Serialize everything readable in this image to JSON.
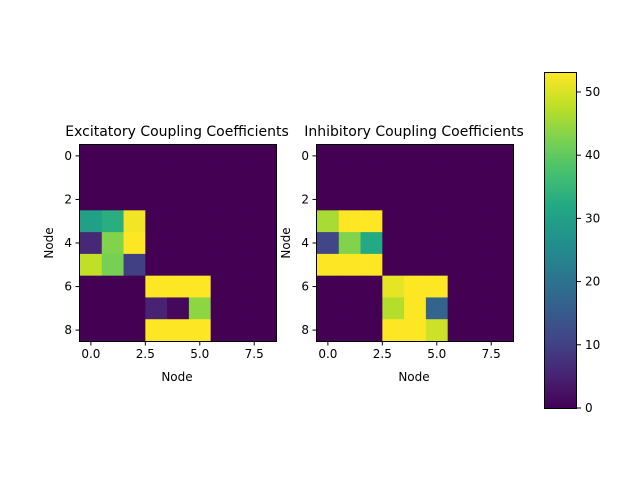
{
  "chart_data": [
    {
      "type": "heatmap",
      "title": "Excitatory Coupling Coefficients",
      "xlabel": "Node",
      "ylabel": "Node",
      "xticks": [
        "0.0",
        "2.5",
        "5.0",
        "7.5"
      ],
      "yticks": [
        "0",
        "2",
        "4",
        "6",
        "8"
      ],
      "values": [
        [
          0,
          0,
          0,
          0,
          0,
          0,
          0,
          0,
          0
        ],
        [
          0,
          0,
          0,
          0,
          0,
          0,
          0,
          0,
          0
        ],
        [
          0,
          0,
          0,
          0,
          0,
          0,
          0,
          0,
          0
        ],
        [
          30,
          33,
          52,
          0,
          0,
          0,
          0,
          0,
          0
        ],
        [
          6,
          43,
          53,
          0,
          0,
          0,
          0,
          0,
          0
        ],
        [
          48,
          42,
          10,
          0,
          0,
          0,
          0,
          0,
          0
        ],
        [
          0,
          0,
          0,
          53,
          53,
          53,
          0,
          0,
          0
        ],
        [
          0,
          0,
          0,
          5,
          1,
          44,
          0,
          0,
          0
        ],
        [
          0,
          0,
          0,
          53,
          53,
          53,
          0,
          0,
          0
        ]
      ]
    },
    {
      "type": "heatmap",
      "title": "Inhibitory Coupling Coefficients",
      "xlabel": "Node",
      "ylabel": "Node",
      "xticks": [
        "0.0",
        "2.5",
        "5.0",
        "7.5"
      ],
      "yticks": [
        "0",
        "2",
        "4",
        "6",
        "8"
      ],
      "values": [
        [
          0,
          0,
          0,
          0,
          0,
          0,
          0,
          0,
          0
        ],
        [
          0,
          0,
          0,
          0,
          0,
          0,
          0,
          0,
          0
        ],
        [
          0,
          0,
          0,
          0,
          0,
          0,
          0,
          0,
          0
        ],
        [
          46,
          53,
          53,
          0,
          0,
          0,
          0,
          0,
          0
        ],
        [
          11,
          43,
          32,
          0,
          0,
          0,
          0,
          0,
          0
        ],
        [
          53,
          53,
          53,
          0,
          0,
          0,
          0,
          0,
          0
        ],
        [
          0,
          0,
          0,
          51,
          53,
          53,
          0,
          0,
          0
        ],
        [
          0,
          0,
          0,
          47,
          53,
          17,
          0,
          0,
          0
        ],
        [
          0,
          0,
          0,
          53,
          53,
          49,
          0,
          0,
          0
        ]
      ]
    }
  ],
  "colorbar": {
    "colormap": "viridis",
    "vmin": 0,
    "vmax": 53,
    "ticks": [
      "0",
      "10",
      "20",
      "30",
      "40",
      "50"
    ]
  }
}
